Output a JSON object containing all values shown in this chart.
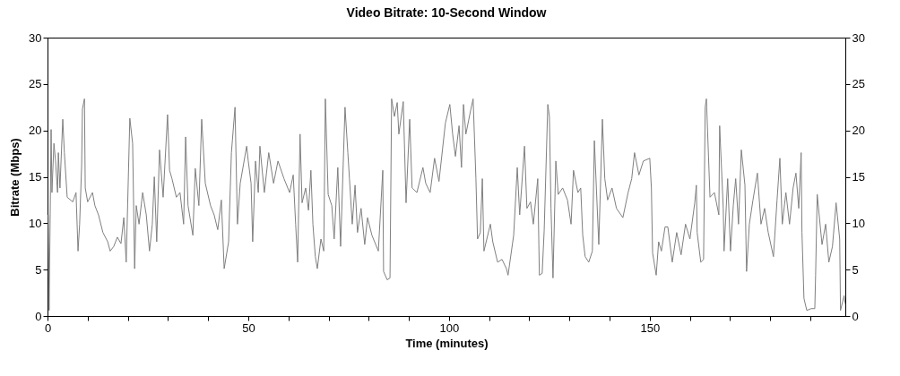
{
  "chart_data": {
    "type": "line",
    "title": "Video Bitrate: 10-Second Window",
    "xlabel": "Time (minutes)",
    "ylabel": "Bitrate (Mbps)",
    "xlim": [
      0,
      198.7
    ],
    "xticks": [
      0,
      {
        "value": 10,
        "label": null
      },
      {
        "value": 20,
        "label": null
      },
      {
        "value": 30,
        "label": null
      },
      {
        "value": 40,
        "label": null
      },
      50,
      {
        "value": 60,
        "label": null
      },
      {
        "value": 70,
        "label": null
      },
      {
        "value": 80,
        "label": null
      },
      {
        "value": 90,
        "label": null
      },
      100,
      {
        "value": 110,
        "label": null
      },
      {
        "value": 120,
        "label": null
      },
      {
        "value": 130,
        "label": null
      },
      {
        "value": 140,
        "label": null
      },
      150,
      {
        "value": 160,
        "label": null
      },
      {
        "value": 170,
        "label": null
      },
      {
        "value": 180,
        "label": null
      },
      {
        "value": 190,
        "label": null
      }
    ],
    "ylim": [
      0,
      30
    ],
    "yticks": [
      0,
      5,
      10,
      15,
      20,
      25,
      30
    ],
    "y2lim": [
      0,
      30
    ],
    "y2ticks": [
      0,
      5,
      10,
      15,
      20,
      25,
      30
    ],
    "grid": false,
    "legend": false,
    "marker": "none",
    "line_style": "solid",
    "series": [
      {
        "color": "#7f7f7f",
        "x": [
          0.2,
          0.4,
          0.9,
          1.1,
          1.6,
          2.0,
          2.5,
          2.7,
          3.1,
          3.8,
          4.2,
          4.9,
          6.3,
          7.1,
          7.6,
          8.0,
          8.5,
          8.7,
          9.2,
          9.4,
          10.0,
          11.2,
          11.8,
          12.7,
          13.8,
          15.0,
          15.6,
          16.5,
          17.4,
          18.3,
          19.0,
          19.6,
          20.5,
          21.2,
          21.7,
          22.1,
          22.8,
          23.7,
          24.6,
          25.4,
          26.1,
          26.6,
          27.2,
          27.9,
          28.8,
          29.9,
          30.4,
          31.0,
          32.1,
          33.0,
          33.9,
          34.4,
          35.0,
          36.2,
          36.8,
          37.7,
          38.4,
          39.3,
          40.6,
          41.5,
          42.4,
          43.3,
          44.0,
          45.1,
          45.8,
          46.7,
          47.3,
          48.0,
          49.6,
          50.0,
          50.7,
          51.1,
          51.8,
          52.5,
          52.9,
          54.0,
          55.1,
          56.3,
          57.4,
          58.9,
          60.3,
          61.2,
          61.8,
          62.3,
          62.9,
          63.4,
          64.3,
          65.0,
          65.6,
          66.1,
          66.7,
          67.2,
          68.1,
          68.8,
          69.2,
          69.9,
          70.8,
          71.4,
          72.3,
          73.0,
          74.1,
          74.8,
          75.2,
          75.9,
          76.6,
          77.2,
          78.1,
          79.0,
          79.7,
          80.8,
          82.4,
          83.5,
          83.7,
          84.6,
          85.3,
          85.7,
          86.4,
          87.1,
          87.5,
          88.6,
          89.3,
          90.2,
          90.8,
          92.0,
          93.5,
          94.2,
          95.3,
          96.4,
          97.5,
          99.1,
          100.2,
          100.9,
          101.6,
          102.5,
          103.1,
          103.6,
          104.2,
          105.4,
          106.0,
          106.7,
          107.1,
          107.8,
          108.3,
          108.7,
          110.3,
          110.9,
          112.1,
          113.2,
          114.3,
          114.7,
          116.1,
          117.0,
          117.6,
          118.8,
          119.4,
          120.3,
          121.0,
          122.1,
          122.5,
          123.2,
          123.7,
          124.6,
          125.0,
          125.4,
          125.9,
          126.6,
          127.2,
          128.3,
          129.5,
          130.4,
          131.0,
          132.1,
          132.8,
          133.3,
          133.9,
          134.8,
          135.7,
          136.2,
          137.3,
          138.2,
          138.8,
          139.5,
          140.6,
          141.7,
          143.3,
          144.6,
          145.5,
          146.2,
          147.3,
          148.4,
          150.0,
          150.4,
          150.7,
          151.6,
          152.2,
          152.9,
          153.8,
          154.5,
          155.6,
          156.7,
          157.8,
          158.9,
          160.0,
          161.2,
          161.6,
          161.8,
          162.7,
          163.4,
          163.8,
          164.1,
          165.0,
          166.1,
          167.2,
          167.4,
          168.3,
          168.5,
          169.4,
          170.1,
          170.8,
          171.4,
          172.1,
          172.8,
          173.7,
          174.1,
          174.8,
          175.7,
          176.8,
          177.7,
          178.6,
          179.5,
          180.8,
          181.7,
          182.4,
          183.0,
          183.9,
          184.8,
          185.7,
          186.4,
          187.1,
          187.7,
          187.9,
          188.4,
          189.1,
          190.2,
          191.1,
          191.3,
          191.7,
          192.9,
          193.8,
          194.6,
          195.5,
          196.4,
          197.3,
          197.5,
          198.4,
          198.7
        ],
        "values": [
          10.9,
          0.6,
          20.1,
          13.3,
          18.6,
          16.7,
          13.3,
          17.6,
          13.8,
          21.2,
          17.6,
          12.8,
          12.3,
          13.3,
          7.0,
          9.9,
          16.2,
          22.3,
          23.4,
          13.8,
          12.3,
          13.3,
          11.9,
          10.9,
          9.0,
          8.0,
          7.0,
          7.5,
          8.5,
          7.8,
          10.6,
          5.8,
          21.3,
          18.6,
          5.1,
          11.9,
          9.9,
          13.3,
          10.9,
          7.0,
          9.9,
          15.0,
          8.0,
          17.9,
          12.8,
          21.7,
          15.7,
          14.8,
          12.8,
          13.3,
          9.9,
          19.3,
          11.9,
          8.7,
          15.9,
          11.9,
          21.2,
          14.3,
          11.9,
          10.9,
          9.3,
          12.5,
          5.1,
          8.0,
          17.6,
          22.5,
          9.9,
          14.3,
          18.3,
          16.7,
          14.3,
          8.0,
          16.7,
          13.3,
          18.3,
          13.3,
          17.6,
          14.3,
          16.7,
          14.8,
          13.3,
          15.2,
          9.9,
          5.8,
          19.6,
          12.2,
          13.8,
          11.4,
          15.7,
          9.9,
          6.4,
          5.1,
          8.3,
          7.0,
          23.4,
          13.1,
          11.9,
          8.3,
          16.0,
          7.5,
          22.5,
          17.6,
          14.8,
          9.9,
          14.1,
          9.0,
          11.6,
          7.7,
          10.6,
          8.7,
          7.0,
          15.7,
          4.8,
          3.9,
          4.1,
          23.4,
          21.5,
          23.0,
          19.6,
          23.1,
          12.2,
          21.2,
          13.8,
          13.3,
          16.0,
          14.3,
          13.3,
          17.0,
          14.5,
          20.8,
          22.8,
          19.6,
          17.2,
          20.5,
          16.0,
          22.8,
          19.6,
          22.2,
          23.4,
          14.8,
          8.3,
          9.0,
          14.8,
          7.0,
          9.9,
          8.0,
          5.8,
          6.1,
          5.1,
          4.4,
          8.7,
          16.0,
          10.9,
          18.3,
          11.6,
          12.3,
          9.9,
          14.8,
          4.4,
          4.6,
          9.2,
          22.8,
          21.5,
          11.6,
          4.1,
          16.7,
          13.1,
          13.8,
          12.5,
          9.9,
          15.7,
          13.3,
          13.8,
          8.7,
          6.4,
          5.8,
          7.0,
          18.9,
          7.7,
          21.2,
          14.8,
          12.5,
          13.8,
          11.6,
          10.6,
          13.3,
          14.8,
          17.6,
          15.2,
          16.7,
          17.0,
          13.8,
          6.8,
          4.4,
          8.0,
          7.0,
          9.6,
          9.6,
          5.8,
          9.0,
          6.6,
          9.9,
          8.3,
          12.2,
          14.1,
          9.0,
          5.8,
          6.1,
          22.5,
          23.4,
          12.8,
          13.3,
          10.9,
          20.5,
          11.6,
          7.0,
          14.8,
          7.0,
          11.9,
          14.8,
          9.9,
          17.9,
          14.1,
          4.8,
          9.9,
          12.5,
          15.4,
          9.9,
          11.6,
          9.0,
          6.4,
          12.5,
          17.0,
          9.9,
          13.3,
          9.9,
          13.8,
          15.4,
          11.6,
          17.6,
          9.0,
          1.9,
          0.6,
          0.8,
          0.8,
          4.4,
          13.1,
          7.7,
          9.9,
          5.8,
          7.5,
          12.2,
          8.3,
          0.6,
          2.2,
          1.3
        ]
      }
    ]
  }
}
